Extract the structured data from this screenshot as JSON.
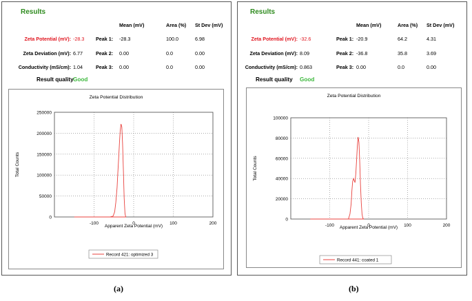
{
  "panels": [
    {
      "results_title": "Results",
      "headers": {
        "mean": "Mean (mV)",
        "area": "Area (%)",
        "stdev": "St Dev (mV)"
      },
      "rows": [
        {
          "label": "Zeta Potential (mV):",
          "value": "-28.3",
          "peak": "Peak 1:",
          "mean": "-28.3",
          "area": "100.0",
          "stdev": "6.98"
        },
        {
          "label": "Zeta Deviation (mV):",
          "value": "6.77",
          "peak": "Peak 2:",
          "mean": "0.00",
          "area": "0.0",
          "stdev": "0.00"
        },
        {
          "label": "Conductivity (mS/cm):",
          "value": "1.04",
          "peak": "Peak 3:",
          "mean": "0.00",
          "area": "0.0",
          "stdev": "0.00"
        }
      ],
      "quality_label": "Result quality",
      "quality_value": "Good",
      "caption": "(a)"
    },
    {
      "results_title": "Results",
      "headers": {
        "mean": "Mean (mV)",
        "area": "Area (%)",
        "stdev": "St Dev (mV)"
      },
      "rows": [
        {
          "label": "Zeta Potential (mV):",
          "value": "-32.6",
          "peak": "Peak 1:",
          "mean": "-20.9",
          "area": "64.2",
          "stdev": "4.31"
        },
        {
          "label": "Zeta Deviation (mV):",
          "value": "8.09",
          "peak": "Peak 2:",
          "mean": "-36.8",
          "area": "35.8",
          "stdev": "3.69"
        },
        {
          "label": "Conductivity (mS/cm):",
          "value": "0.863",
          "peak": "Peak 3:",
          "mean": "0.00",
          "area": "0.0",
          "stdev": "0.00"
        }
      ],
      "quality_label": "Result quality",
      "quality_value": "Good",
      "caption": "(b)"
    }
  ],
  "chart_data": [
    {
      "type": "line",
      "title": "Zeta Potential Distribution",
      "xlabel": "Apparent Zeta Potential (mV)",
      "ylabel": "Total Counts",
      "xlim": [
        -200,
        200
      ],
      "ylim": [
        0,
        250000
      ],
      "xticks": [
        -100,
        0,
        100,
        200
      ],
      "yticks": [
        0,
        50000,
        100000,
        150000,
        200000,
        250000
      ],
      "grid": true,
      "legend_position": "bottom",
      "color": "#e8403c",
      "series": [
        {
          "name": "Record 421: optimized 3",
          "x": [
            -150,
            -60,
            -52,
            -48,
            -45,
            -42,
            -40,
            -38,
            -36,
            -34,
            -32,
            -30,
            -28,
            -26,
            -24,
            -22,
            -20,
            -150
          ],
          "y": [
            0,
            0,
            2000,
            12000,
            35000,
            70000,
            105000,
            140000,
            175000,
            205000,
            222000,
            215000,
            175000,
            110000,
            45000,
            8000,
            0,
            0
          ]
        }
      ]
    },
    {
      "type": "line",
      "title": "Zeta Potential Distribution",
      "xlabel": "Apparent Zeta Potential (mV)",
      "ylabel": "Total Counts",
      "xlim": [
        -200,
        200
      ],
      "ylim": [
        0,
        100000
      ],
      "xticks": [
        -100,
        0,
        100,
        200
      ],
      "yticks": [
        0,
        20000,
        40000,
        60000,
        80000,
        100000
      ],
      "grid": true,
      "legend_position": "bottom",
      "color": "#e8403c",
      "series": [
        {
          "name": "Record 441: coated 1",
          "x": [
            -150,
            -52,
            -48,
            -45,
            -43,
            -41,
            -39,
            -37,
            -35,
            -33,
            -31,
            -29,
            -27,
            -25,
            -23,
            -21,
            -19,
            -17,
            -15,
            -13,
            -150
          ],
          "y": [
            0,
            0,
            5000,
            15000,
            28000,
            37000,
            40000,
            38000,
            36000,
            45000,
            58000,
            72000,
            81000,
            76000,
            58000,
            35000,
            16000,
            5000,
            1000,
            0,
            0
          ]
        }
      ]
    }
  ]
}
